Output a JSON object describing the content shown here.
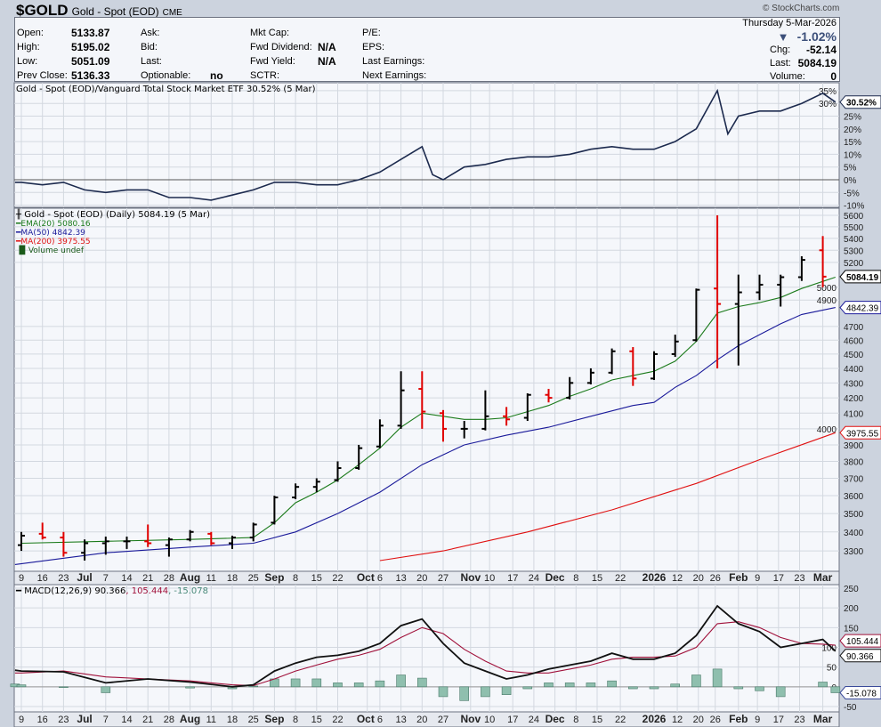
{
  "header": {
    "symbol": "$GOLD",
    "name": "Gold - Spot (EOD)",
    "exchange": "CME",
    "copyright": "© StockCharts.com"
  },
  "quote": {
    "left": [
      [
        "Open:",
        "5133.87"
      ],
      [
        "High:",
        "5195.02"
      ],
      [
        "Low:",
        "5051.09"
      ],
      [
        "Prev Close:",
        "5136.33"
      ]
    ],
    "mid": [
      [
        "Ask:",
        ""
      ],
      [
        "Bid:",
        ""
      ],
      [
        "Last:",
        ""
      ],
      [
        "Optionable:",
        "no"
      ]
    ],
    "fund": [
      [
        "Mkt Cap:",
        ""
      ],
      [
        "Fwd Dividend:",
        "N/A"
      ],
      [
        "Fwd Yield:",
        "N/A"
      ],
      [
        "SCTR:",
        ""
      ]
    ],
    "earn": [
      "P/E:",
      "EPS:",
      "Last Earnings:",
      "Next Earnings:"
    ],
    "date": "Thursday  5-Mar-2026",
    "pct_change": "-1.02%",
    "chg_label": "Chg:",
    "chg": "-52.14",
    "last_label": "Last:",
    "last": "5084.19",
    "volume_label": "Volume:",
    "volume": "0"
  },
  "chart_data": [
    {
      "type": "line",
      "panel": "ratio",
      "title": "Gold - Spot (EOD)/Vanguard Total Stock Market ETF 30.52% (5 Mar)",
      "ylabel": "%",
      "ylim": [
        -10,
        37
      ],
      "yticks": [
        35,
        30,
        25,
        20,
        15,
        10,
        5,
        0,
        -5,
        -10
      ],
      "ytick_suffix": "%",
      "last_tag": "30.52%",
      "week": [
        -0.3,
        0,
        1,
        2,
        3,
        4,
        5,
        6,
        7,
        8,
        9,
        10,
        11,
        12,
        13,
        14,
        15,
        16,
        17,
        18,
        19,
        19.5,
        20,
        21,
        22,
        23,
        24,
        25,
        26,
        27,
        28,
        29,
        30,
        31,
        32,
        33,
        33.5,
        34,
        35,
        36,
        37,
        38,
        38.6
      ],
      "values": [
        -1,
        -1,
        -2,
        -1,
        -4,
        -5,
        -4,
        -4,
        -7,
        -7,
        -8,
        -6,
        -4,
        -1,
        -1,
        -2,
        -2,
        0,
        3,
        8,
        13,
        2,
        0,
        5,
        6,
        8,
        9,
        9,
        10,
        12,
        13,
        12,
        12,
        15,
        20,
        35,
        18,
        25,
        27,
        27,
        30,
        34,
        30.52
      ],
      "color": "#1c2a4e"
    },
    {
      "type": "ohlc",
      "panel": "price",
      "title": "Gold - Spot (EOD) (Daily) 5084.19 (5 Mar)",
      "scale": "log",
      "ylim": [
        3250,
        5650
      ],
      "yticks": [
        5600,
        5500,
        5400,
        5300,
        5200,
        5000,
        4900,
        4700,
        4600,
        4500,
        4400,
        4300,
        4200,
        4100,
        4000,
        3900,
        3800,
        3700,
        3600,
        3500,
        3400,
        3300
      ],
      "week": [
        0,
        1,
        2,
        3,
        4,
        5,
        6,
        7,
        8,
        9,
        10,
        11,
        12,
        13,
        14,
        15,
        16,
        17,
        18,
        19,
        20,
        21,
        22,
        23,
        24,
        25,
        26,
        27,
        28,
        29,
        30,
        31,
        32,
        33,
        34,
        35,
        36,
        37,
        38
      ],
      "ohlc": [
        [
          3330,
          3400,
          3300,
          3380
        ],
        [
          3390,
          3450,
          3360,
          3370
        ],
        [
          3370,
          3400,
          3270,
          3290
        ],
        [
          3290,
          3360,
          3250,
          3340
        ],
        [
          3340,
          3375,
          3280,
          3350
        ],
        [
          3350,
          3375,
          3310,
          3350
        ],
        [
          3350,
          3440,
          3320,
          3340
        ],
        [
          3330,
          3370,
          3270,
          3360
        ],
        [
          3360,
          3410,
          3350,
          3400
        ],
        [
          3390,
          3400,
          3330,
          3340
        ],
        [
          3340,
          3380,
          3310,
          3370
        ],
        [
          3370,
          3450,
          3350,
          3440
        ],
        [
          3450,
          3600,
          3440,
          3590
        ],
        [
          3590,
          3670,
          3580,
          3650
        ],
        [
          3650,
          3700,
          3620,
          3680
        ],
        [
          3690,
          3800,
          3680,
          3760
        ],
        [
          3760,
          3900,
          3750,
          3880
        ],
        [
          3890,
          4060,
          3880,
          4020
        ],
        [
          4020,
          4380,
          4000,
          4250
        ],
        [
          4260,
          4380,
          4000,
          4110
        ],
        [
          4100,
          4120,
          3920,
          4000
        ],
        [
          4000,
          4050,
          3940,
          4000
        ],
        [
          4000,
          4250,
          3990,
          4080
        ],
        [
          4080,
          4140,
          4020,
          4060
        ],
        [
          4070,
          4230,
          4050,
          4220
        ],
        [
          4220,
          4260,
          4170,
          4200
        ],
        [
          4200,
          4340,
          4190,
          4300
        ],
        [
          4300,
          4400,
          4290,
          4370
        ],
        [
          4370,
          4540,
          4360,
          4520
        ],
        [
          4520,
          4550,
          4280,
          4330
        ],
        [
          4330,
          4520,
          4320,
          4500
        ],
        [
          4500,
          4640,
          4480,
          4590
        ],
        [
          4600,
          4990,
          4590,
          4980
        ],
        [
          4990,
          5600,
          4400,
          4870
        ],
        [
          4870,
          5100,
          4420,
          4960
        ],
        [
          4960,
          5100,
          4900,
          5020
        ],
        [
          5020,
          5100,
          4850,
          5080
        ],
        [
          5080,
          5250,
          5050,
          5220
        ],
        [
          5300,
          5420,
          5000,
          5084.19
        ]
      ],
      "last_tag": "5084.19",
      "overlays": [
        {
          "name": "EMA(20) 5080.16",
          "color": "#1a7a1a",
          "tag": "",
          "week": [
            0,
            4,
            8,
            11,
            12,
            13,
            14,
            15,
            16,
            17,
            18,
            19,
            20,
            21,
            22,
            23,
            24,
            25,
            26,
            27,
            28,
            29,
            30,
            31,
            32,
            33,
            34,
            35,
            36,
            37,
            38.6
          ],
          "values": [
            3340,
            3350,
            3360,
            3370,
            3450,
            3560,
            3620,
            3690,
            3780,
            3880,
            4010,
            4100,
            4080,
            4060,
            4060,
            4070,
            4110,
            4150,
            4210,
            4260,
            4320,
            4350,
            4380,
            4450,
            4590,
            4800,
            4850,
            4880,
            4920,
            4990,
            5080
          ]
        },
        {
          "name": "MA(50) 4842.39",
          "color": "#1a1a9a",
          "tag": "4842.39",
          "week": [
            -0.3,
            4,
            8,
            11,
            13,
            15,
            17,
            19,
            21,
            23,
            25,
            27,
            29,
            30,
            31,
            32,
            33,
            34,
            35,
            36,
            37,
            38.6
          ],
          "values": [
            3230,
            3290,
            3320,
            3340,
            3400,
            3500,
            3620,
            3780,
            3900,
            3960,
            4010,
            4080,
            4150,
            4170,
            4270,
            4350,
            4460,
            4560,
            4640,
            4720,
            4790,
            4842.39
          ]
        },
        {
          "name": "MA(200) 3975.55",
          "color": "#e01010",
          "tag": "3975.55",
          "week": [
            17,
            20,
            24,
            28,
            32,
            35,
            38.6
          ],
          "values": [
            3250,
            3300,
            3400,
            3520,
            3670,
            3810,
            3975.55
          ]
        }
      ],
      "volume_label": "Volume undef"
    },
    {
      "type": "line",
      "panel": "macd",
      "title_parts": [
        "MACD(12,26,9) 90.366",
        ", 105.444",
        ", -15.078"
      ],
      "ylim": [
        -60,
        260
      ],
      "yticks": [
        250,
        200,
        150,
        100,
        50,
        0,
        -50
      ],
      "week": [
        -0.3,
        0,
        2,
        4,
        6,
        8,
        10,
        11,
        12,
        13,
        14,
        15,
        16,
        17,
        18,
        19,
        20,
        21,
        22,
        23,
        24,
        25,
        26,
        27,
        28,
        29,
        30,
        31,
        32,
        33,
        34,
        35,
        36,
        37,
        38,
        38.6
      ],
      "macd": [
        42,
        40,
        38,
        10,
        20,
        12,
        0,
        5,
        40,
        60,
        75,
        80,
        90,
        110,
        155,
        172,
        110,
        60,
        40,
        20,
        30,
        45,
        55,
        65,
        85,
        70,
        70,
        85,
        130,
        205,
        160,
        140,
        100,
        110,
        120,
        90.366
      ],
      "signal": [
        35,
        35,
        40,
        25,
        20,
        15,
        5,
        3,
        20,
        40,
        55,
        70,
        80,
        95,
        125,
        150,
        135,
        95,
        65,
        40,
        35,
        35,
        45,
        55,
        70,
        75,
        75,
        78,
        100,
        160,
        165,
        150,
        125,
        110,
        108,
        105.444
      ],
      "tags": [
        "105.444",
        "90.366",
        "-15.078"
      ]
    }
  ],
  "date_axis": [
    [
      "9",
      0,
      0
    ],
    [
      "16",
      1,
      0
    ],
    [
      "23",
      2,
      0
    ],
    [
      "Jul",
      3,
      1
    ],
    [
      "7",
      4,
      0
    ],
    [
      "14",
      5,
      0
    ],
    [
      "21",
      6,
      0
    ],
    [
      "28",
      7,
      0
    ],
    [
      "Aug",
      8,
      1
    ],
    [
      "11",
      9,
      0
    ],
    [
      "18",
      10,
      0
    ],
    [
      "25",
      11,
      0
    ],
    [
      "Sep",
      12,
      1
    ],
    [
      "8",
      13,
      0
    ],
    [
      "15",
      14,
      0
    ],
    [
      "22",
      15,
      0
    ],
    [
      "Oct",
      16.4,
      1
    ],
    [
      "6",
      17,
      0
    ],
    [
      "13",
      18,
      0
    ],
    [
      "20",
      19,
      0
    ],
    [
      "27",
      20,
      0
    ],
    [
      "Nov",
      21.3,
      1
    ],
    [
      "10",
      22.2,
      0
    ],
    [
      "17",
      23.3,
      0
    ],
    [
      "24",
      24.3,
      0
    ],
    [
      "Dec",
      25.3,
      1
    ],
    [
      "8",
      26.3,
      0
    ],
    [
      "15",
      27.3,
      0
    ],
    [
      "22",
      28.4,
      0
    ],
    [
      "2026",
      30,
      1
    ],
    [
      "12",
      31.1,
      0
    ],
    [
      "20",
      32.1,
      0
    ],
    [
      "26",
      32.9,
      0
    ],
    [
      "Feb",
      34,
      1
    ],
    [
      "9",
      34.9,
      0
    ],
    [
      "17",
      35.9,
      0
    ],
    [
      "23",
      36.9,
      0
    ],
    [
      "Mar",
      38,
      1
    ]
  ]
}
